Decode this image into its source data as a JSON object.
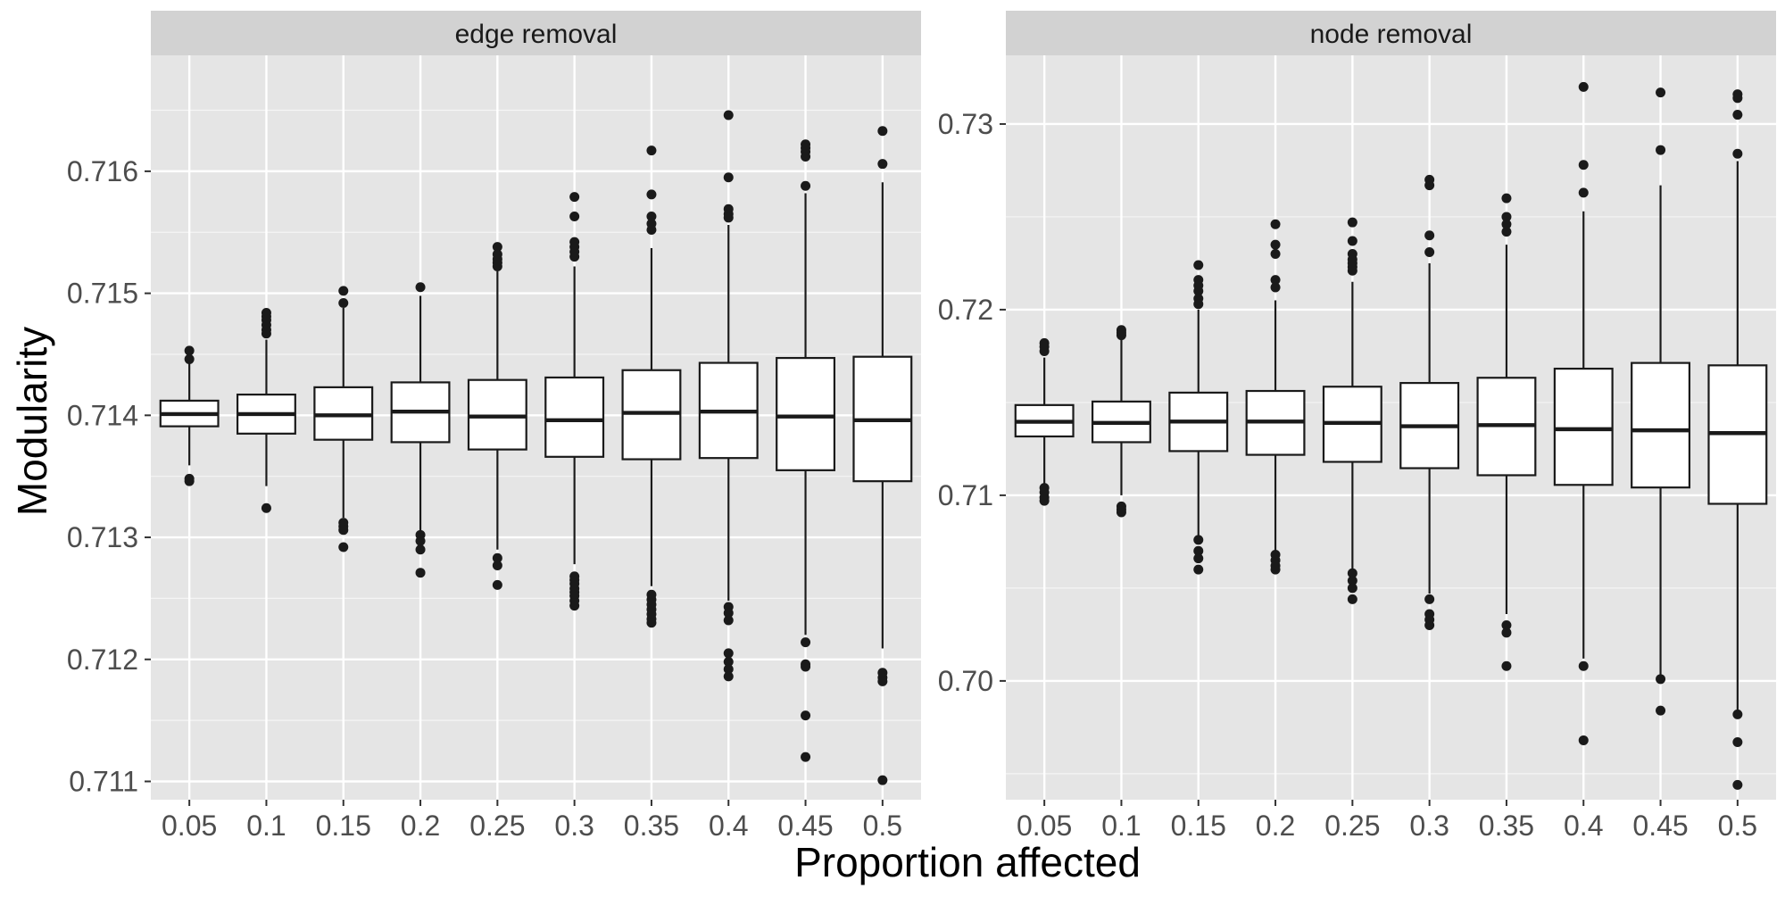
{
  "chart_data": {
    "type": "boxplot",
    "xlabel": "Proportion affected",
    "ylabel": "Modularity",
    "colors": {
      "panel_bg": "#E5E5E5",
      "strip_bg": "#D2D2D2",
      "grid_major": "#FFFFFF",
      "box_fill": "#FFFFFF",
      "box_stroke": "#1A1A1A",
      "outlier": "#1A1A1A",
      "text": "#1A1A1A",
      "tick_text": "#4D4D4D"
    },
    "categories": [
      "0.05",
      "0.1",
      "0.15",
      "0.2",
      "0.25",
      "0.3",
      "0.35",
      "0.4",
      "0.45",
      "0.5"
    ],
    "panels": [
      {
        "title": "edge removal",
        "ylim": [
          0.71085,
          0.71695
        ],
        "yticks": [
          0.711,
          0.712,
          0.713,
          0.714,
          0.715,
          0.716
        ],
        "ytick_labels": [
          "0.711",
          "0.712",
          "0.713",
          "0.714",
          "0.715",
          "0.716"
        ],
        "boxes": [
          {
            "category": "0.05",
            "lower_whisker": 0.71359,
            "q1": 0.71391,
            "median": 0.71401,
            "q3": 0.71412,
            "upper_whisker": 0.71443,
            "outliers": [
              0.71453,
              0.71446,
              0.71348,
              0.71346
            ]
          },
          {
            "category": "0.1",
            "lower_whisker": 0.71342,
            "q1": 0.71385,
            "median": 0.71401,
            "q3": 0.71417,
            "upper_whisker": 0.71462,
            "outliers": [
              0.71484,
              0.71481,
              0.71478,
              0.71474,
              0.7147,
              0.71467,
              0.71324
            ]
          },
          {
            "category": "0.15",
            "lower_whisker": 0.71316,
            "q1": 0.7138,
            "median": 0.714,
            "q3": 0.71423,
            "upper_whisker": 0.71488,
            "outliers": [
              0.71502,
              0.71492,
              0.71312,
              0.71309,
              0.71306,
              0.71292
            ]
          },
          {
            "category": "0.2",
            "lower_whisker": 0.71304,
            "q1": 0.71378,
            "median": 0.71403,
            "q3": 0.71427,
            "upper_whisker": 0.71498,
            "outliers": [
              0.71505,
              0.71302,
              0.71297,
              0.7129,
              0.71271
            ]
          },
          {
            "category": "0.25",
            "lower_whisker": 0.7129,
            "q1": 0.71372,
            "median": 0.71399,
            "q3": 0.71429,
            "upper_whisker": 0.71518,
            "outliers": [
              0.71538,
              0.71532,
              0.71528,
              0.71525,
              0.71522,
              0.71283,
              0.71277,
              0.71261
            ]
          },
          {
            "category": "0.3",
            "lower_whisker": 0.71278,
            "q1": 0.71366,
            "median": 0.71396,
            "q3": 0.71431,
            "upper_whisker": 0.71522,
            "outliers": [
              0.71579,
              0.71563,
              0.71542,
              0.71538,
              0.71534,
              0.7153,
              0.71268,
              0.71265,
              0.71262,
              0.71258,
              0.71255,
              0.71252,
              0.71248,
              0.71244
            ]
          },
          {
            "category": "0.35",
            "lower_whisker": 0.7126,
            "q1": 0.71364,
            "median": 0.71402,
            "q3": 0.71437,
            "upper_whisker": 0.71537,
            "outliers": [
              0.71617,
              0.71581,
              0.71563,
              0.71557,
              0.71552,
              0.71253,
              0.71249,
              0.71245,
              0.71241,
              0.71237,
              0.71233,
              0.7123
            ]
          },
          {
            "category": "0.4",
            "lower_whisker": 0.71248,
            "q1": 0.71365,
            "median": 0.71403,
            "q3": 0.71443,
            "upper_whisker": 0.71556,
            "outliers": [
              0.71646,
              0.71595,
              0.71569,
              0.71565,
              0.71562,
              0.71243,
              0.71238,
              0.71232,
              0.71205,
              0.71198,
              0.71192,
              0.71186
            ]
          },
          {
            "category": "0.45",
            "lower_whisker": 0.7122,
            "q1": 0.71355,
            "median": 0.71399,
            "q3": 0.71447,
            "upper_whisker": 0.71582,
            "outliers": [
              0.71622,
              0.71619,
              0.71616,
              0.71612,
              0.71588,
              0.71214,
              0.71196,
              0.71194,
              0.71154,
              0.7112
            ]
          },
          {
            "category": "0.5",
            "lower_whisker": 0.71209,
            "q1": 0.71346,
            "median": 0.71396,
            "q3": 0.71448,
            "upper_whisker": 0.71591,
            "outliers": [
              0.71633,
              0.71606,
              0.71189,
              0.71185,
              0.71182,
              0.71101
            ]
          }
        ]
      },
      {
        "title": "node removal",
        "ylim": [
          0.6936,
          0.7337
        ],
        "yticks": [
          0.7,
          0.71,
          0.72,
          0.73
        ],
        "ytick_labels": [
          "0.70",
          "0.71",
          "0.72",
          "0.73"
        ],
        "boxes": [
          {
            "category": "0.05",
            "lower_whisker": 0.71052,
            "q1": 0.71317,
            "median": 0.71396,
            "q3": 0.71486,
            "upper_whisker": 0.71742,
            "outliers": [
              0.7182,
              0.718,
              0.71776,
              0.7104,
              0.71016,
              0.70988,
              0.7097
            ]
          },
          {
            "category": "0.1",
            "lower_whisker": 0.71,
            "q1": 0.71286,
            "median": 0.7139,
            "q3": 0.71505,
            "upper_whisker": 0.71853,
            "outliers": [
              0.7189,
              0.71876,
              0.71862,
              0.7094,
              0.70924,
              0.70908
            ]
          },
          {
            "category": "0.15",
            "lower_whisker": 0.70776,
            "q1": 0.71238,
            "median": 0.71397,
            "q3": 0.71553,
            "upper_whisker": 0.72,
            "outliers": [
              0.7224,
              0.7216,
              0.7213,
              0.721,
              0.7206,
              0.7203,
              0.7076,
              0.707,
              0.7066,
              0.706
            ]
          },
          {
            "category": "0.2",
            "lower_whisker": 0.707,
            "q1": 0.71218,
            "median": 0.71397,
            "q3": 0.71562,
            "upper_whisker": 0.7205,
            "outliers": [
              0.7246,
              0.7235,
              0.723,
              0.7216,
              0.7212,
              0.7068,
              0.7065,
              0.7062,
              0.706
            ]
          },
          {
            "category": "0.25",
            "lower_whisker": 0.706,
            "q1": 0.7118,
            "median": 0.7139,
            "q3": 0.71585,
            "upper_whisker": 0.7215,
            "outliers": [
              0.7247,
              0.7237,
              0.723,
              0.7227,
              0.7225,
              0.7223,
              0.7221,
              0.7058,
              0.7054,
              0.705,
              0.7044
            ]
          },
          {
            "category": "0.3",
            "lower_whisker": 0.7047,
            "q1": 0.71146,
            "median": 0.71372,
            "q3": 0.71605,
            "upper_whisker": 0.7225,
            "outliers": [
              0.727,
              0.7267,
              0.724,
              0.7231,
              0.7044,
              0.7036,
              0.7033,
              0.703
            ]
          },
          {
            "category": "0.35",
            "lower_whisker": 0.7036,
            "q1": 0.71108,
            "median": 0.71378,
            "q3": 0.71633,
            "upper_whisker": 0.7235,
            "outliers": [
              0.726,
              0.725,
              0.7246,
              0.7242,
              0.703,
              0.7026,
              0.7008
            ]
          },
          {
            "category": "0.4",
            "lower_whisker": 0.7012,
            "q1": 0.71056,
            "median": 0.71356,
            "q3": 0.71682,
            "upper_whisker": 0.7253,
            "outliers": [
              0.732,
              0.7278,
              0.7263,
              0.7008,
              0.6968
            ]
          },
          {
            "category": "0.45",
            "lower_whisker": 0.7003,
            "q1": 0.71042,
            "median": 0.7135,
            "q3": 0.71713,
            "upper_whisker": 0.7267,
            "outliers": [
              0.7317,
              0.7286,
              0.7001,
              0.6984
            ]
          },
          {
            "category": "0.5",
            "lower_whisker": 0.6984,
            "q1": 0.70954,
            "median": 0.71335,
            "q3": 0.717,
            "upper_whisker": 0.728,
            "outliers": [
              0.7316,
              0.7314,
              0.7305,
              0.7284,
              0.6982,
              0.6967,
              0.6944
            ]
          }
        ]
      }
    ]
  }
}
